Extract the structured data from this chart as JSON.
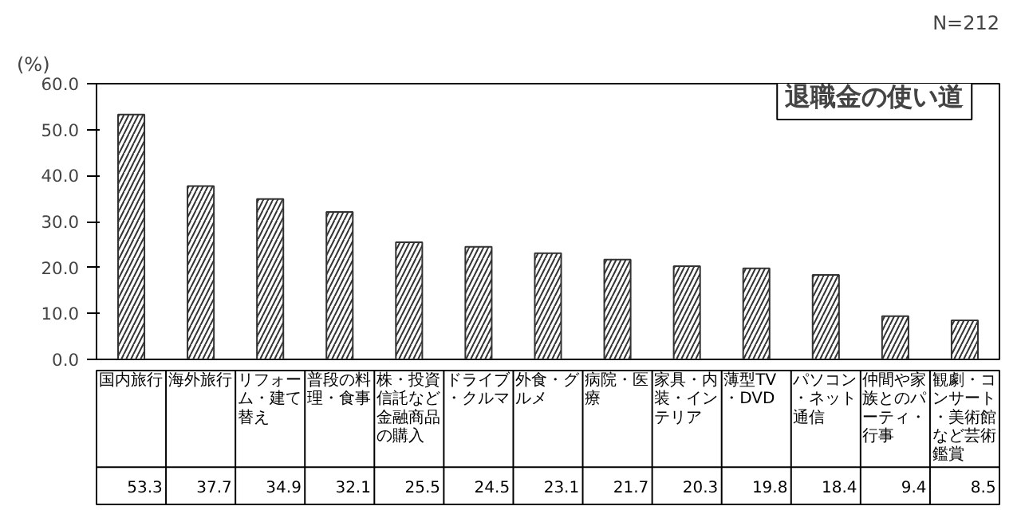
{
  "chart_data": {
    "type": "bar",
    "title": "退職金の使い道",
    "ylabel": "(%)",
    "annotations": [
      "N=212"
    ],
    "categories": [
      "国内旅行",
      "海外旅行",
      "リフォーム・建て替え",
      "普段の料理・食事",
      "株・投資信託など金融商品の購入",
      "ドライブ・クルマ",
      "外食・グルメ",
      "病院・医療",
      "家具・内装・インテリア",
      "薄型TV・DVD",
      "パソコン・ネット通信",
      "仲間や家族とのパーティ・行事",
      "観劇・コンサート・美術館など芸術鑑賞"
    ],
    "values": [
      53.3,
      37.7,
      34.9,
      32.1,
      25.5,
      24.5,
      23.1,
      21.7,
      20.3,
      19.8,
      18.4,
      9.4,
      8.5
    ],
    "color": "#333333",
    "ylim": [
      0,
      60
    ],
    "yticks": [
      {
        "value": 0,
        "label": "0.0"
      },
      {
        "value": 10,
        "label": "10.0"
      },
      {
        "value": 20,
        "label": "20.0"
      },
      {
        "value": 30,
        "label": "30.0"
      },
      {
        "value": 40,
        "label": "40.0"
      },
      {
        "value": 50,
        "label": "50.0"
      },
      {
        "value": 60,
        "label": "60.0"
      }
    ],
    "data_labels": true
  }
}
